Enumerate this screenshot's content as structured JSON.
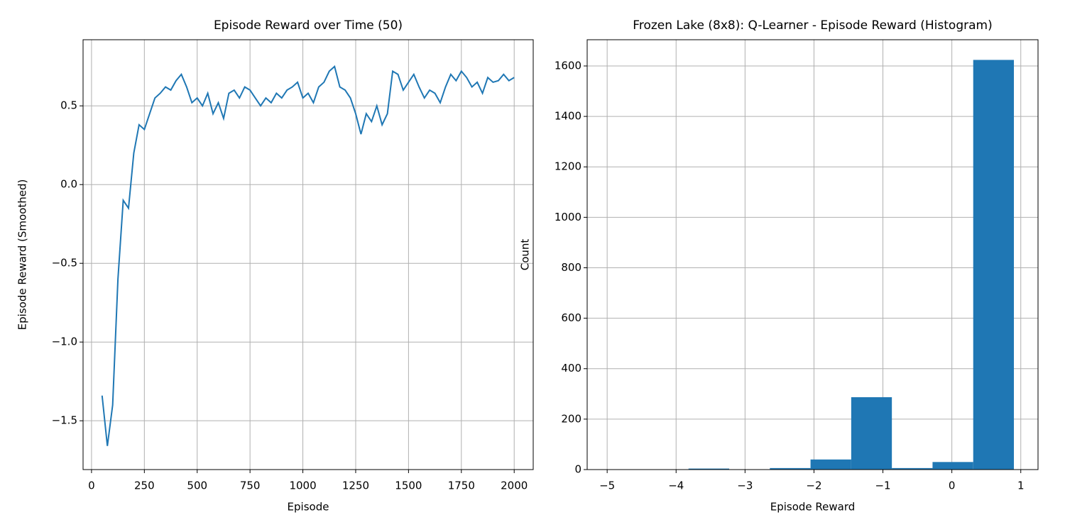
{
  "chart_data": [
    {
      "type": "line",
      "title": "Episode Reward over Time (50)",
      "xlabel": "Episode",
      "ylabel": "Episode Reward (Smoothed)",
      "x": [
        50,
        75,
        100,
        125,
        150,
        175,
        200,
        225,
        250,
        275,
        300,
        325,
        350,
        375,
        400,
        425,
        450,
        475,
        500,
        525,
        550,
        575,
        600,
        625,
        650,
        675,
        700,
        725,
        750,
        775,
        800,
        825,
        850,
        875,
        900,
        925,
        950,
        975,
        1000,
        1025,
        1050,
        1075,
        1100,
        1125,
        1150,
        1175,
        1200,
        1225,
        1250,
        1275,
        1300,
        1325,
        1350,
        1375,
        1400,
        1425,
        1450,
        1475,
        1500,
        1525,
        1550,
        1575,
        1600,
        1625,
        1650,
        1675,
        1700,
        1725,
        1750,
        1775,
        1800,
        1825,
        1850,
        1875,
        1900,
        1925,
        1950,
        1975,
        2000
      ],
      "series": [
        {
          "name": "Episode Reward",
          "color": "#1f77b4",
          "values": [
            -1.34,
            -1.66,
            -1.4,
            -0.6,
            -0.1,
            -0.15,
            0.2,
            0.38,
            0.35,
            0.45,
            0.55,
            0.58,
            0.62,
            0.6,
            0.66,
            0.7,
            0.62,
            0.52,
            0.55,
            0.5,
            0.58,
            0.45,
            0.52,
            0.42,
            0.58,
            0.6,
            0.55,
            0.62,
            0.6,
            0.55,
            0.5,
            0.55,
            0.52,
            0.58,
            0.55,
            0.6,
            0.62,
            0.65,
            0.55,
            0.58,
            0.52,
            0.62,
            0.65,
            0.72,
            0.75,
            0.62,
            0.6,
            0.55,
            0.45,
            0.32,
            0.45,
            0.4,
            0.5,
            0.38,
            0.45,
            0.72,
            0.7,
            0.6,
            0.65,
            0.7,
            0.62,
            0.55,
            0.6,
            0.58,
            0.52,
            0.62,
            0.7,
            0.66,
            0.72,
            0.68,
            0.62,
            0.65,
            0.58,
            0.68,
            0.65,
            0.66,
            0.7,
            0.66,
            0.68
          ]
        }
      ],
      "xlim": [
        -40,
        2090
      ],
      "xticks": [
        0,
        250,
        500,
        750,
        1000,
        1250,
        1500,
        1750,
        2000
      ],
      "ylim": [
        -1.81,
        0.92
      ],
      "yticks": [
        {
          "value": -1.5,
          "label": "−1.5"
        },
        {
          "value": -1.0,
          "label": "−1.0"
        },
        {
          "value": -0.5,
          "label": "−0.5"
        },
        {
          "value": 0,
          "label": "0.0"
        },
        0.5
      ],
      "grid": true
    },
    {
      "type": "histogram",
      "title": "Frozen Lake (8x8): Q-Learner - Episode Reward (Histogram)",
      "xlabel": "Episode Reward",
      "ylabel": "Count",
      "bins": [
        -5,
        -4.41,
        -3.82,
        -3.23,
        -2.64,
        -2.05,
        -1.46,
        -0.87,
        -0.28,
        0.31,
        0.9
      ],
      "values": [
        1,
        1,
        4,
        1,
        6,
        40,
        287,
        6,
        30,
        1624
      ],
      "color": "#1f77b4",
      "xlim": [
        -5.29,
        1.25
      ],
      "xticks": [
        {
          "value": -5,
          "label": "−5"
        },
        {
          "value": -4,
          "label": "−4"
        },
        {
          "value": -3,
          "label": "−3"
        },
        {
          "value": -2,
          "label": "−2"
        },
        {
          "value": -1,
          "label": "−1"
        },
        0,
        1
      ],
      "ylim": [
        0,
        1704
      ],
      "yticks": [
        0,
        200,
        400,
        600,
        800,
        1000,
        1200,
        1400,
        1600
      ],
      "grid": true
    }
  ]
}
